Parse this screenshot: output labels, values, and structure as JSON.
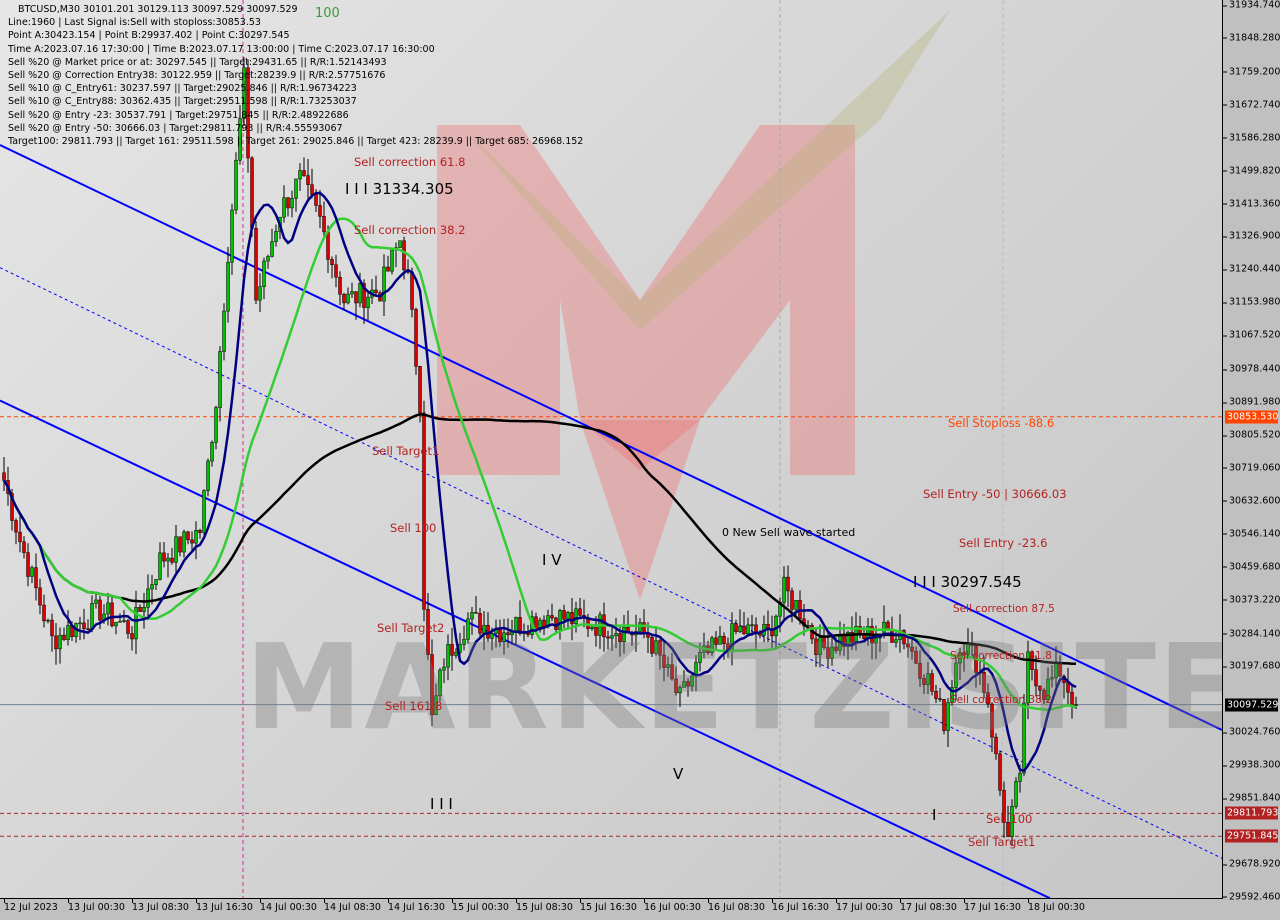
{
  "header": {
    "title": "BTCUSD,M30  30101.201 30129.113 30097.529 30097.529",
    "lines": [
      "Line:1960 | Last Signal is:Sell with stoploss:30853.53",
      "Point A:30423.154 | Point B:29937.402 | Point C:30297.545",
      "Time A:2023.07.16 17:30:00 | Time B:2023.07.17 13:00:00 | Time C:2023.07.17 16:30:00",
      "Sell %20 @ Market price or at: 30297.545 || Target:29431.65 || R/R:1.52143493",
      "Sell %20 @ Correction Entry38: 30122.959 || Target:28239.9 || R/R:2.57751676",
      "Sell %10 @ C_Entry61: 30237.597 || Target:29025.846 || R/R:1.96734223",
      "Sell %10 @ C_Entry88: 30362.435 || Target:29511.598 || R/R:1.73253037",
      "Sell %20 @ Entry -23: 30537.791 | Target:29751.845 || R/R:2.48922686",
      "Sell %20 @ Entry -50: 30666.03 | Target:29811.793 || R/R:4.55593067",
      "Target100: 29811.793 || Target 161: 29511.598 || Target 261: 29025.846 || Target 423: 28239.9 || Target 685: 26968.152"
    ]
  },
  "watermark": "MARKETZISITE",
  "chart_labels": {
    "top_100": "100",
    "sell_correction_618_left": "Sell correction 61.8",
    "wave_iii_top": "I I I 31334.305",
    "sell_correction_382_left": "Sell correction 38.2",
    "sell_target1_left": "Sell Target1",
    "sell_100_left": "Sell 100",
    "sell_target2": "Sell Target2",
    "sell_1618": "Sell 161.8",
    "wave_iv": "I V",
    "wave_v": "V",
    "wave_iii_bottom": "I I I",
    "new_wave": "0 New Sell wave started",
    "wave_iii_right": "I I I 30297.545",
    "sell_stoploss": "Sell Stoploss -88.6",
    "sell_entry_50": "Sell Entry -50 | 30666.03",
    "sell_entry_236": "Sell Entry -23.6",
    "sell_correction_875": "Sell correction 87.5",
    "sell_correction_618_right": "Sell correction 61.8",
    "sell_correction_382_right": "Sell correction 38.2",
    "wave_i": "I",
    "sell_100_right": "Sell 100",
    "sell_target1_right": "Sell Target1"
  },
  "chart_data": {
    "type": "candlestick",
    "symbol": "BTCUSD",
    "timeframe": "M30",
    "ylim": [
      29592.46,
      31934.74
    ],
    "y_ticks": [
      31934.74,
      31848.28,
      31759.2,
      31672.74,
      31586.28,
      31499.82,
      31413.36,
      31326.9,
      31240.44,
      31153.98,
      31067.52,
      30978.44,
      30891.98,
      30805.52,
      30719.06,
      30632.6,
      30546.14,
      30459.68,
      30373.22,
      30284.14,
      30197.68,
      30024.76,
      29938.3,
      29851.84,
      29678.92,
      29592.46
    ],
    "x_ticks": [
      {
        "t": "07-12 16:30",
        "label": "12 Jul 2023"
      },
      {
        "t": "07-13 00:30",
        "label": "13 Jul 00:30"
      },
      {
        "t": "07-13 08:30",
        "label": "13 Jul 08:30"
      },
      {
        "t": "07-13 16:30",
        "label": "13 Jul 16:30"
      },
      {
        "t": "07-14 00:30",
        "label": "14 Jul 00:30"
      },
      {
        "t": "07-14 08:30",
        "label": "14 Jul 08:30"
      },
      {
        "t": "07-14 16:30",
        "label": "14 Jul 16:30"
      },
      {
        "t": "07-15 00:30",
        "label": "15 Jul 00:30"
      },
      {
        "t": "07-15 08:30",
        "label": "15 Jul 08:30"
      },
      {
        "t": "07-15 16:30",
        "label": "15 Jul 16:30"
      },
      {
        "t": "07-16 00:30",
        "label": "16 Jul 00:30"
      },
      {
        "t": "07-16 08:30",
        "label": "16 Jul 08:30"
      },
      {
        "t": "07-16 16:30",
        "label": "16 Jul 16:30"
      },
      {
        "t": "07-17 00:30",
        "label": "17 Jul 00:30"
      },
      {
        "t": "07-17 08:30",
        "label": "17 Jul 08:30"
      },
      {
        "t": "07-17 16:30",
        "label": "17 Jul 16:30"
      },
      {
        "t": "07-18 00:30",
        "label": "18 Jul 00:30"
      }
    ],
    "close_path": [
      [
        "07-12 16:30",
        30687
      ],
      [
        "07-12 18:30",
        30529
      ],
      [
        "07-12 22:30",
        30267
      ],
      [
        "07-13 04:30",
        30346
      ],
      [
        "07-13 08:30",
        30293
      ],
      [
        "07-13 12:00",
        30477
      ],
      [
        "07-13 17:00",
        30556
      ],
      [
        "07-13 19:00",
        30897
      ],
      [
        "07-13 20:30",
        31291
      ],
      [
        "07-13 22:30",
        31738
      ],
      [
        "07-14 00:00",
        31160
      ],
      [
        "07-14 03:00",
        31396
      ],
      [
        "07-14 05:30",
        31475
      ],
      [
        "07-14 08:00",
        31370
      ],
      [
        "07-14 11:00",
        31160
      ],
      [
        "07-14 15:30",
        31186
      ],
      [
        "07-14 18:00",
        31318
      ],
      [
        "07-14 19:00",
        31213
      ],
      [
        "07-14 20:30",
        30897
      ],
      [
        "07-14 21:00",
        30372
      ],
      [
        "07-14 22:00",
        30057
      ],
      [
        "07-14 23:30",
        30215
      ],
      [
        "07-15 02:30",
        30320
      ],
      [
        "07-15 06:30",
        30293
      ],
      [
        "07-15 12:30",
        30333
      ],
      [
        "07-15 19:00",
        30307
      ],
      [
        "07-16 01:00",
        30280
      ],
      [
        "07-16 05:00",
        30110
      ],
      [
        "07-16 07:30",
        30215
      ],
      [
        "07-16 12:30",
        30293
      ],
      [
        "07-16 16:00",
        30280
      ],
      [
        "07-16 18:00",
        30398
      ],
      [
        "07-16 20:00",
        30346
      ],
      [
        "07-16 22:30",
        30241
      ],
      [
        "07-17 01:00",
        30267
      ],
      [
        "07-17 04:30",
        30280
      ],
      [
        "07-17 08:30",
        30293
      ],
      [
        "07-17 12:00",
        30162
      ],
      [
        "07-17 14:00",
        30057
      ],
      [
        "07-17 16:00",
        30267
      ],
      [
        "07-17 18:00",
        30215
      ],
      [
        "07-17 19:30",
        30110
      ],
      [
        "07-17 21:00",
        29873
      ],
      [
        "07-17 22:00",
        29742
      ],
      [
        "07-17 23:30",
        29926
      ],
      [
        "07-18 00:30",
        30215
      ],
      [
        "07-18 02:30",
        30136
      ],
      [
        "07-18 04:30",
        30188
      ],
      [
        "07-18 06:30",
        30097.529
      ]
    ],
    "channel_lines": [
      {
        "style": "solid",
        "from": [
          "07-12 16:00",
          31567
        ],
        "to": [
          "07-19 00:45",
          30031
        ]
      },
      {
        "style": "dotted",
        "from": [
          "07-12 16:00",
          31245
        ],
        "to": [
          "07-19 00:45",
          29694
        ]
      },
      {
        "style": "solid",
        "from": [
          "07-12 16:00",
          30896
        ],
        "to": [
          "07-18 03:15",
          29589
        ]
      }
    ],
    "levels": [
      {
        "price": 30853.53,
        "label": "30853.530",
        "color": "#ff4500",
        "style": "dashed"
      },
      {
        "price": 29811.793,
        "label": "29811.793",
        "color": "#a52a2a",
        "style": "dashed"
      },
      {
        "price": 29751.845,
        "label": "29751.845",
        "color": "#a52a2a",
        "style": "dashed"
      },
      {
        "price": 30097.529,
        "label": "30097.529",
        "color": "#000000",
        "style": "current"
      }
    ],
    "moving_averages": [
      {
        "color": "#000080",
        "period": 10
      },
      {
        "color": "#33cc33",
        "period": 30
      },
      {
        "color": "#000000",
        "period": 100
      }
    ],
    "colors": {
      "bull": "#00c000",
      "bear": "#e00000",
      "channel": "#0000ff"
    }
  }
}
